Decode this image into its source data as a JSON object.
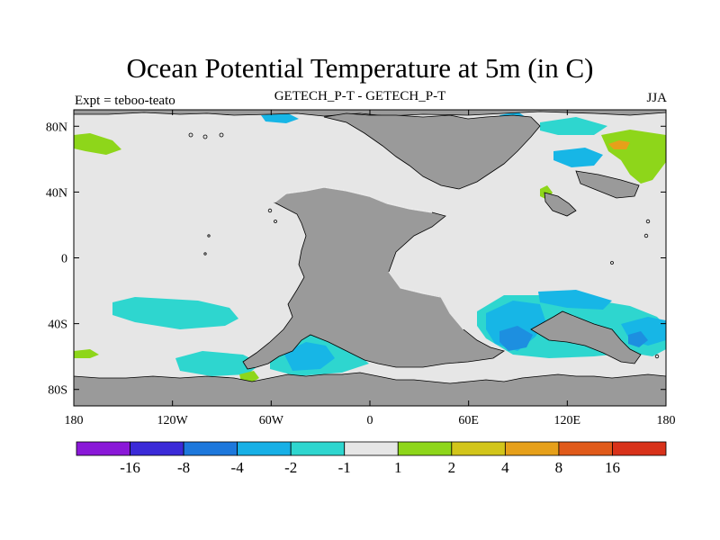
{
  "title": "Ocean Potential Temperature at 5m (in C)",
  "subtitle_left": "Expt = teboo-teato",
  "subtitle_center": "GETECH_P-T - GETECH_P-T",
  "subtitle_right": "JJA",
  "colors": {
    "land": "#9a9a9a",
    "ocean_neutral": "#e6e6e6",
    "cyan_m1": "#2ed6cf",
    "lightblue_m2": "#17b6e6",
    "blue_m4": "#1d8fe0",
    "green_p1": "#8ed61a",
    "yellow_p2": "#d2c51a",
    "orange_p4": "#e6a01a"
  },
  "chart_data": {
    "type": "map",
    "projection": "cylindrical equidistant",
    "x_range": [
      -180,
      180
    ],
    "y_range": [
      -90,
      90
    ],
    "x_ticks": [
      {
        "value": -180,
        "label": "180"
      },
      {
        "value": -120,
        "label": "120W"
      },
      {
        "value": -60,
        "label": "60W"
      },
      {
        "value": 0,
        "label": "0"
      },
      {
        "value": 60,
        "label": "60E"
      },
      {
        "value": 120,
        "label": "120E"
      },
      {
        "value": 180,
        "label": "180"
      }
    ],
    "y_ticks": [
      {
        "value": 80,
        "label": "80N"
      },
      {
        "value": 40,
        "label": "40N"
      },
      {
        "value": 0,
        "label": "0"
      },
      {
        "value": -40,
        "label": "40S"
      },
      {
        "value": -80,
        "label": "80S"
      }
    ],
    "colorbar": {
      "levels": [
        -16,
        -8,
        -4,
        -2,
        -1,
        1,
        2,
        4,
        8,
        16
      ],
      "level_labels": [
        "-16",
        "-8",
        "-4",
        "-2",
        "-1",
        "1",
        "2",
        "4",
        "8",
        "16"
      ],
      "colors": [
        "#8a18d8",
        "#3b2ad8",
        "#1d78dc",
        "#17b0e6",
        "#2ed6cf",
        "#e6e6e6",
        "#8ed61a",
        "#d2c51a",
        "#e6a01a",
        "#e05a1a",
        "#d8321a"
      ]
    }
  }
}
